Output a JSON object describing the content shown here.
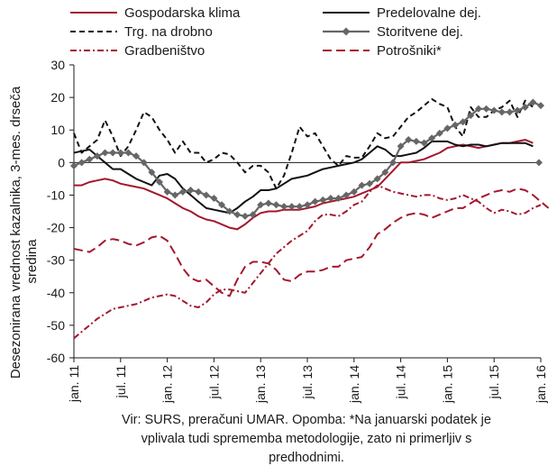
{
  "chart_data": {
    "type": "line",
    "ylabel_line1": "Desezonirana vrednost kazalnika, 3-mes. drseča",
    "ylabel_line2": "sredina",
    "ylim": [
      -60,
      30
    ],
    "yticks": [
      -60,
      -50,
      -40,
      -30,
      -20,
      -10,
      0,
      10,
      20,
      30
    ],
    "grid": false,
    "legend_position": "top",
    "x_tick_labels": [
      "jan. 11",
      "jul. 11",
      "jan. 12",
      "jul. 12",
      "jan. 13",
      "jul. 13",
      "jan. 14",
      "jul. 14",
      "jan. 15",
      "jul. 15",
      "jan. 16"
    ],
    "x_start": "jan. 11",
    "x_step": "month",
    "series": [
      {
        "name": "Gospodarska klima",
        "color": "#a3182e",
        "style": "solid",
        "values": [
          -7,
          -7,
          -6,
          -5.5,
          -5,
          -5.5,
          -6.5,
          -7,
          -7.5,
          -8,
          -9,
          -10,
          -11,
          -12.5,
          -14,
          -15,
          -16.5,
          -17.5,
          -18,
          -19,
          -20,
          -20.5,
          -19,
          -17,
          -15.5,
          -15,
          -15,
          -14.5,
          -14.5,
          -14.5,
          -14,
          -13.5,
          -12.5,
          -12,
          -11.5,
          -11,
          -10.5,
          -9.5,
          -8.5,
          -7.5,
          -5,
          -2.5,
          0,
          0,
          0.5,
          1,
          2,
          3,
          4.5,
          5,
          5.5,
          5,
          4.5,
          5,
          5.5,
          6,
          6,
          6.5,
          7,
          6
        ]
      },
      {
        "name": "Predelovalne dej.",
        "color": "#111111",
        "style": "solid",
        "values": [
          3,
          3.5,
          4,
          2,
          0,
          -2,
          -2,
          -3.5,
          -5,
          -6,
          -7,
          -4,
          -3.5,
          -5,
          -8,
          -10,
          -12,
          -14,
          -14.5,
          -15,
          -15.5,
          -14,
          -12,
          -10.5,
          -8.5,
          -8.5,
          -8,
          -6.5,
          -5,
          -4.5,
          -4,
          -3,
          -2,
          -1.5,
          -1,
          -0.5,
          0,
          1,
          3,
          5,
          4,
          2,
          2,
          2.5,
          3,
          4.5,
          6.5,
          6.5,
          6.5,
          5.5,
          5,
          5.5,
          5.5,
          5,
          5.5,
          6,
          6,
          6,
          6,
          5
        ]
      },
      {
        "name": "Trg. na drobno",
        "color": "#111111",
        "style": "dashed",
        "values": [
          9,
          3,
          5,
          7,
          13,
          8,
          2,
          5,
          10,
          15.5,
          14,
          10,
          7,
          3,
          6.5,
          3,
          3,
          0,
          1,
          3,
          2.5,
          0,
          -3,
          -1,
          -1,
          -3,
          -8,
          -4,
          3,
          11,
          8,
          9,
          5,
          1,
          -1,
          2,
          1.5,
          1.5,
          5,
          9,
          7.5,
          8,
          11,
          14,
          15.5,
          17.5,
          19.5,
          18,
          17,
          11,
          8,
          17,
          14,
          14,
          16,
          17,
          19,
          14,
          19,
          17
        ]
      },
      {
        "name": "Storitvene dej.",
        "color": "#666666",
        "style": "solid-diamond",
        "values": [
          -1,
          0,
          1,
          2,
          3,
          3,
          3,
          3,
          2,
          0,
          -3,
          -6,
          -9,
          -10,
          -9,
          -8.5,
          -9,
          -10,
          -11,
          -13,
          -15,
          -16,
          -16.5,
          -16,
          -13,
          -12.5,
          -13,
          -13.5,
          -13.5,
          -13.5,
          -13,
          -12,
          -11.5,
          -11,
          -11,
          -10,
          -9,
          -7,
          -6.5,
          -5,
          -3,
          0,
          5,
          7,
          6.5,
          6,
          7.5,
          9,
          10.5,
          11.5,
          12.5,
          14.5,
          16.5,
          16.5,
          16,
          15.5,
          15.5,
          16,
          17,
          18.5,
          17.5
        ]
      },
      {
        "name": "Gradbeništvo",
        "color": "#a3182e",
        "style": "dashdot",
        "values": [
          -54,
          -52,
          -50,
          -48,
          -46.5,
          -45,
          -44.5,
          -44,
          -43.5,
          -42.5,
          -41.5,
          -41,
          -40.5,
          -41,
          -42.5,
          -44,
          -44.5,
          -43,
          -40.5,
          -39,
          -39,
          -39.5,
          -40,
          -37,
          -34,
          -31,
          -28,
          -26,
          -24,
          -22.5,
          -21,
          -18,
          -16,
          -16,
          -16.5,
          -15,
          -13,
          -12,
          -9,
          -7,
          -8,
          -9,
          -9.5,
          -10,
          -10.5,
          -10,
          -10,
          -11,
          -11.5,
          -11,
          -10,
          -11,
          -12,
          -14,
          -15.5,
          -14.5,
          -15,
          -16,
          -15.5,
          -14,
          -13
        ]
      },
      {
        "name": "Potrošniki*",
        "color": "#a3182e",
        "style": "longdash",
        "values": [
          -26.5,
          -27,
          -27.5,
          -26,
          -24,
          -23.5,
          -24,
          -25,
          -25.5,
          -24.5,
          -23,
          -22.5,
          -24,
          -28,
          -32.5,
          -35.5,
          -36.5,
          -36,
          -38,
          -40,
          -41,
          -36,
          -32,
          -30.5,
          -30.5,
          -31,
          -33,
          -36,
          -36.5,
          -34.5,
          -33.5,
          -33.5,
          -33,
          -32,
          -32,
          -30,
          -29.5,
          -29,
          -26,
          -22,
          -20.5,
          -18.5,
          -17,
          -16,
          -15.5,
          -16,
          -17,
          -16,
          -15,
          -14,
          -14,
          -12.5,
          -11,
          -10,
          -9,
          -8.5,
          -9,
          -8,
          -8.5,
          -10,
          -12,
          -14
        ]
      }
    ],
    "extra_point": {
      "series": "Storitvene dej.",
      "x_label": "jan. 16",
      "value": 0
    }
  },
  "note": {
    "line1": "Vir: SURS, preračuni UMAR. Opomba: *Na januarski podatek je",
    "line2": "vplivala tudi sprememba metodologije, zato ni primerljiv s",
    "line3": "predhodnimi."
  }
}
